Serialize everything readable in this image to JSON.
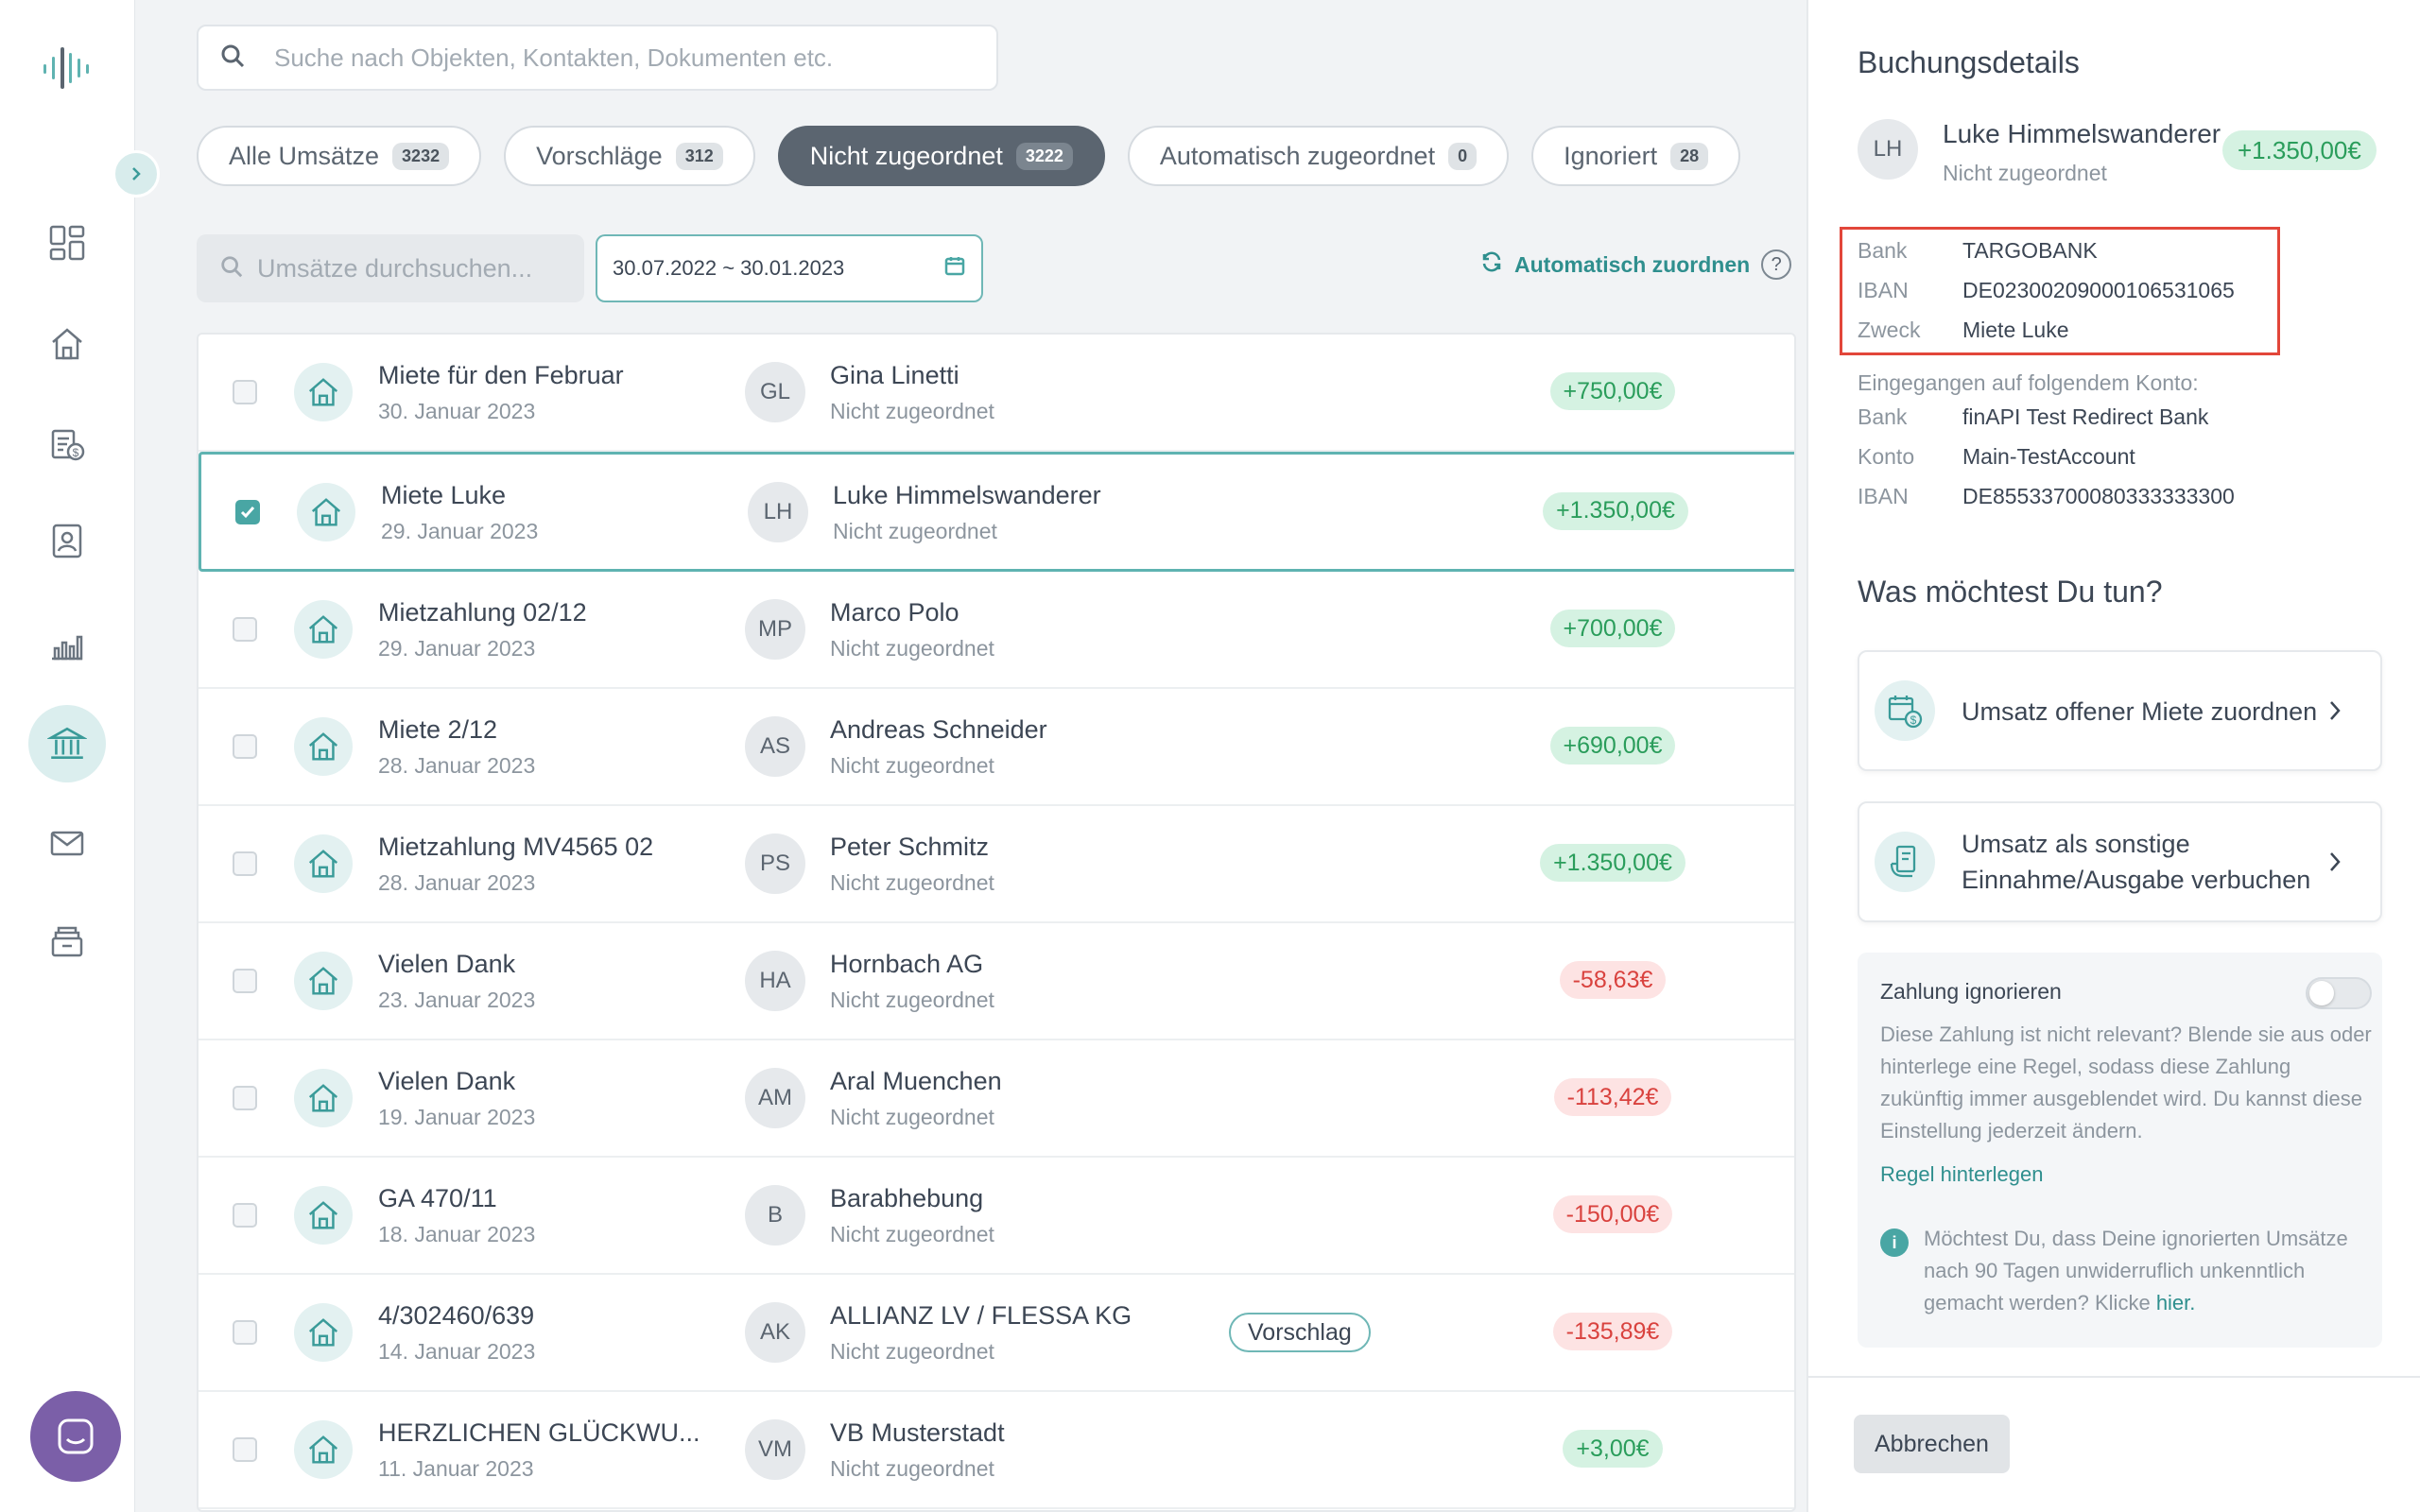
{
  "search": {
    "placeholder": "Suche nach Objekten, Kontakten, Dokumenten etc."
  },
  "tabs": [
    {
      "label": "Alle Umsätze",
      "count": "3232",
      "active": false
    },
    {
      "label": "Vorschläge",
      "count": "312",
      "active": false
    },
    {
      "label": "Nicht zugeordnet",
      "count": "3222",
      "active": true
    },
    {
      "label": "Automatisch zugeordnet",
      "count": "0",
      "active": false
    },
    {
      "label": "Ignoriert",
      "count": "28",
      "active": false
    }
  ],
  "filters": {
    "search_placeholder": "Umsätze durchsuchen...",
    "date_range": "30.07.2022 ~ 30.01.2023",
    "auto_assign_label": "Automatisch zuordnen",
    "help": "?"
  },
  "transactions": [
    {
      "title": "Miete für den Februar",
      "date": "30. Januar 2023",
      "initials": "GL",
      "name": "Gina Linetti",
      "status": "Nicht zugeordnet",
      "amount": "+750,00€",
      "sign": "pos",
      "badge": "",
      "selected": false
    },
    {
      "title": "Miete Luke",
      "date": "29. Januar 2023",
      "initials": "LH",
      "name": "Luke Himmelswanderer",
      "status": "Nicht zugeordnet",
      "amount": "+1.350,00€",
      "sign": "pos",
      "badge": "",
      "selected": true
    },
    {
      "title": "Mietzahlung 02/12",
      "date": "29. Januar 2023",
      "initials": "MP",
      "name": "Marco Polo",
      "status": "Nicht zugeordnet",
      "amount": "+700,00€",
      "sign": "pos",
      "badge": "",
      "selected": false
    },
    {
      "title": "Miete 2/12",
      "date": "28. Januar 2023",
      "initials": "AS",
      "name": "Andreas Schneider",
      "status": "Nicht zugeordnet",
      "amount": "+690,00€",
      "sign": "pos",
      "badge": "",
      "selected": false
    },
    {
      "title": "Mietzahlung MV4565 02",
      "date": "28. Januar 2023",
      "initials": "PS",
      "name": "Peter Schmitz",
      "status": "Nicht zugeordnet",
      "amount": "+1.350,00€",
      "sign": "pos",
      "badge": "",
      "selected": false
    },
    {
      "title": "Vielen Dank",
      "date": "23. Januar 2023",
      "initials": "HA",
      "name": "Hornbach AG",
      "status": "Nicht zugeordnet",
      "amount": "-58,63€",
      "sign": "neg",
      "badge": "",
      "selected": false
    },
    {
      "title": "Vielen Dank",
      "date": "19. Januar 2023",
      "initials": "AM",
      "name": "Aral Muenchen",
      "status": "Nicht zugeordnet",
      "amount": "-113,42€",
      "sign": "neg",
      "badge": "",
      "selected": false
    },
    {
      "title": "GA 470/11",
      "date": "18. Januar 2023",
      "initials": "B",
      "name": "Barabhebung",
      "status": "Nicht zugeordnet",
      "amount": "-150,00€",
      "sign": "neg",
      "badge": "",
      "selected": false
    },
    {
      "title": "4/302460/639",
      "date": "14. Januar 2023",
      "initials": "AK",
      "name": "ALLIANZ LV / FLESSA KG",
      "status": "Nicht zugeordnet",
      "amount": "-135,89€",
      "sign": "neg",
      "badge": "Vorschlag",
      "selected": false
    },
    {
      "title": "HERZLICHEN GLÜCKWU...",
      "date": "11. Januar 2023",
      "initials": "VM",
      "name": "VB Musterstadt",
      "status": "Nicht zugeordnet",
      "amount": "+3,00€",
      "sign": "pos",
      "badge": "",
      "selected": false
    }
  ],
  "details": {
    "title": "Buchungsdetails",
    "initials": "LH",
    "name": "Luke Himmelswanderer",
    "status": "Nicht zugeordnet",
    "amount": "+1.350,00€",
    "sender": [
      {
        "key": "Bank",
        "value": "TARGOBANK"
      },
      {
        "key": "IBAN",
        "value": "DE02300209000106531065"
      },
      {
        "key": "Zweck",
        "value": "Miete Luke"
      }
    ],
    "received_label": "Eingegangen auf folgendem Konto:",
    "receiver": [
      {
        "key": "Bank",
        "value": "finAPI Test Redirect Bank"
      },
      {
        "key": "Konto",
        "value": "Main-TestAccount"
      },
      {
        "key": "IBAN",
        "value": "DE85533700080333333300"
      }
    ],
    "actions_title": "Was möchtest Du tun?",
    "action1": "Umsatz offener Miete zuordnen",
    "action2_line1": "Umsatz als sonstige",
    "action2_line2": "Einnahme/Ausgabe verbuchen",
    "ignore_title": "Zahlung ignorieren",
    "ignore_text": "Diese Zahlung ist nicht relevant? Blende sie aus oder hinterlege eine Regel, sodass diese Zahlung zukünftig immer ausgeblendet wird. Du kannst diese Einstellung jederzeit ändern.",
    "rule_link": "Regel hinterlegen",
    "info_text": "Möchtest Du, dass Deine ignorierten Umsätze nach 90 Tagen unwiderruflich unkenntlich gemacht werden? Klicke",
    "info_link": "hier.",
    "cancel": "Abbrechen"
  },
  "colors": {
    "accent": "#49a6a4",
    "positive": "#2a9d5b",
    "negative": "#d9423e",
    "highlight": "#e2463a"
  },
  "icons": [
    "logo-icon",
    "dashboard-icon",
    "home-icon",
    "rent-documents-icon",
    "contacts-icon",
    "analytics-icon",
    "bank-icon",
    "mail-icon",
    "archive-icon",
    "chat-icon"
  ]
}
